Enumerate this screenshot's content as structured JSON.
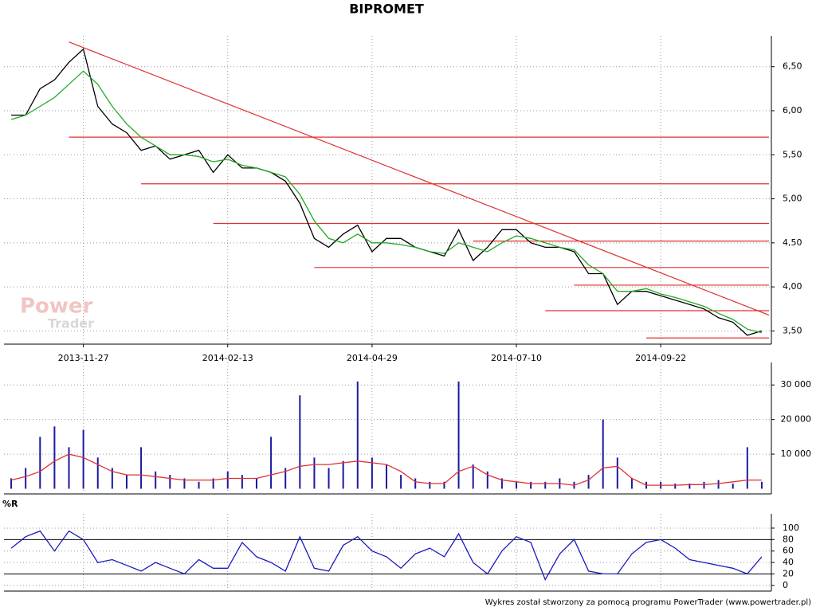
{
  "chart_data": [
    {
      "type": "line",
      "title": "BIPROMET",
      "categories": [
        null,
        null,
        null,
        null,
        null,
        "2013-11-27",
        null,
        null,
        null,
        null,
        null,
        null,
        null,
        null,
        null,
        "2014-02-13",
        null,
        null,
        null,
        null,
        null,
        null,
        null,
        null,
        null,
        "2014-04-29",
        null,
        null,
        null,
        null,
        null,
        null,
        null,
        null,
        null,
        "2014-07-10",
        null,
        null,
        null,
        null,
        null,
        null,
        null,
        null,
        null,
        "2014-09-22",
        null,
        null,
        null,
        null,
        null,
        null,
        null
      ],
      "series": [
        {
          "color": "#000000",
          "values": [
            5.95,
            5.95,
            6.25,
            6.35,
            6.55,
            6.7,
            6.05,
            5.85,
            5.75,
            5.55,
            5.6,
            5.45,
            5.5,
            5.55,
            5.3,
            5.5,
            5.35,
            5.35,
            5.3,
            5.2,
            4.95,
            4.55,
            4.45,
            4.6,
            4.7,
            4.4,
            4.55,
            4.55,
            4.45,
            4.4,
            4.35,
            4.65,
            4.3,
            4.45,
            4.65,
            4.65,
            4.5,
            4.45,
            4.45,
            4.4,
            4.15,
            4.15,
            3.8,
            3.95,
            3.95,
            3.9,
            3.85,
            3.8,
            3.75,
            3.65,
            3.6,
            3.45,
            3.5
          ]
        },
        {
          "color": "#22aa22",
          "values": [
            5.9,
            5.95,
            6.05,
            6.15,
            6.3,
            6.45,
            6.3,
            6.05,
            5.85,
            5.7,
            5.6,
            5.5,
            5.5,
            5.48,
            5.42,
            5.45,
            5.38,
            5.35,
            5.3,
            5.25,
            5.05,
            4.75,
            4.55,
            4.5,
            4.6,
            4.5,
            4.5,
            4.48,
            4.45,
            4.4,
            4.38,
            4.5,
            4.45,
            4.4,
            4.5,
            4.58,
            4.55,
            4.5,
            4.45,
            4.42,
            4.25,
            4.15,
            3.95,
            3.95,
            3.98,
            3.92,
            3.88,
            3.83,
            3.78,
            3.7,
            3.63,
            3.52,
            3.48
          ]
        }
      ],
      "ylim": [
        3.35,
        6.85
      ],
      "yticks": [
        {
          "value": 3.5,
          "label": "3,50"
        },
        {
          "value": 4,
          "label": "4,00"
        },
        {
          "value": 4.5,
          "label": "4,50"
        },
        {
          "value": 5,
          "label": "5,00"
        },
        {
          "value": 5.5,
          "label": "5,50"
        },
        {
          "value": 6,
          "label": "6,00"
        },
        {
          "value": 6.5,
          "label": "6,50"
        }
      ],
      "grid": true,
      "hlines": [
        {
          "y": 5.7,
          "x0": 4
        },
        {
          "y": 5.17,
          "x0": 9
        },
        {
          "y": 4.72,
          "x0": 14
        },
        {
          "y": 4.52,
          "x0": 32
        },
        {
          "y": 4.22,
          "x0": 21
        },
        {
          "y": 4.02,
          "x0": 39
        },
        {
          "y": 3.73,
          "x0": 37
        },
        {
          "y": 3.42,
          "x0": 44
        }
      ],
      "hline_color": "#e03030",
      "trendline": {
        "x": [
          4,
          52.5
        ],
        "y": [
          6.78,
          3.68
        ]
      },
      "watermark": [
        "Power",
        "Trader"
      ]
    },
    {
      "type": "bar",
      "series": [
        {
          "color": "#1a1aa0",
          "values": [
            3000,
            6000,
            15000,
            18000,
            12000,
            17000,
            9000,
            6000,
            4000,
            12000,
            5000,
            4000,
            3000,
            2000,
            3000,
            5000,
            4000,
            3000,
            15000,
            6000,
            27000,
            9000,
            6000,
            8000,
            31000,
            9000,
            7000,
            4000,
            3000,
            2000,
            2000,
            31000,
            7000,
            5000,
            3000,
            2000,
            2000,
            2000,
            3000,
            2000,
            4000,
            20000,
            9000,
            3000,
            2000,
            2000,
            1500,
            1500,
            2000,
            2500,
            1500,
            12000,
            2000
          ]
        },
        {
          "type": "line",
          "color": "#e03030",
          "values": [
            2500,
            3500,
            5000,
            8000,
            10000,
            9000,
            7000,
            5000,
            4000,
            4000,
            3500,
            3000,
            2500,
            2500,
            2500,
            3000,
            3000,
            3000,
            4000,
            5000,
            6500,
            7000,
            7000,
            7500,
            8000,
            7500,
            7000,
            5000,
            2000,
            1500,
            1500,
            5000,
            6500,
            4000,
            2500,
            2000,
            1500,
            1500,
            1500,
            1000,
            2500,
            6000,
            6500,
            3000,
            1000,
            1000,
            1000,
            1200,
            1200,
            1500,
            2000,
            2500,
            2500
          ]
        }
      ],
      "ylim": [
        -1500,
        36500
      ],
      "yticks": [
        {
          "value": 10000,
          "label": "10 000"
        },
        {
          "value": 20000,
          "label": "20 000"
        },
        {
          "value": 30000,
          "label": "30 000"
        }
      ],
      "grid": true
    },
    {
      "type": "line",
      "ylabel": "%R",
      "series": [
        {
          "color": "#1a1ac0",
          "values": [
            65,
            85,
            95,
            60,
            95,
            80,
            40,
            45,
            35,
            25,
            40,
            30,
            20,
            45,
            30,
            30,
            75,
            50,
            40,
            25,
            85,
            30,
            25,
            70,
            85,
            60,
            50,
            30,
            55,
            65,
            50,
            90,
            40,
            20,
            60,
            85,
            75,
            10,
            55,
            80,
            25,
            20,
            20,
            55,
            75,
            80,
            65,
            45,
            40,
            35,
            30,
            20,
            50
          ]
        }
      ],
      "ylim": [
        -10,
        125
      ],
      "yticks": [
        0,
        20,
        40,
        60,
        80,
        100
      ],
      "levels": [
        20,
        80
      ],
      "grid": true
    }
  ],
  "footer": "Wykres został stworzony za pomocą programu PowerTrader (www.powertrader.pl)"
}
